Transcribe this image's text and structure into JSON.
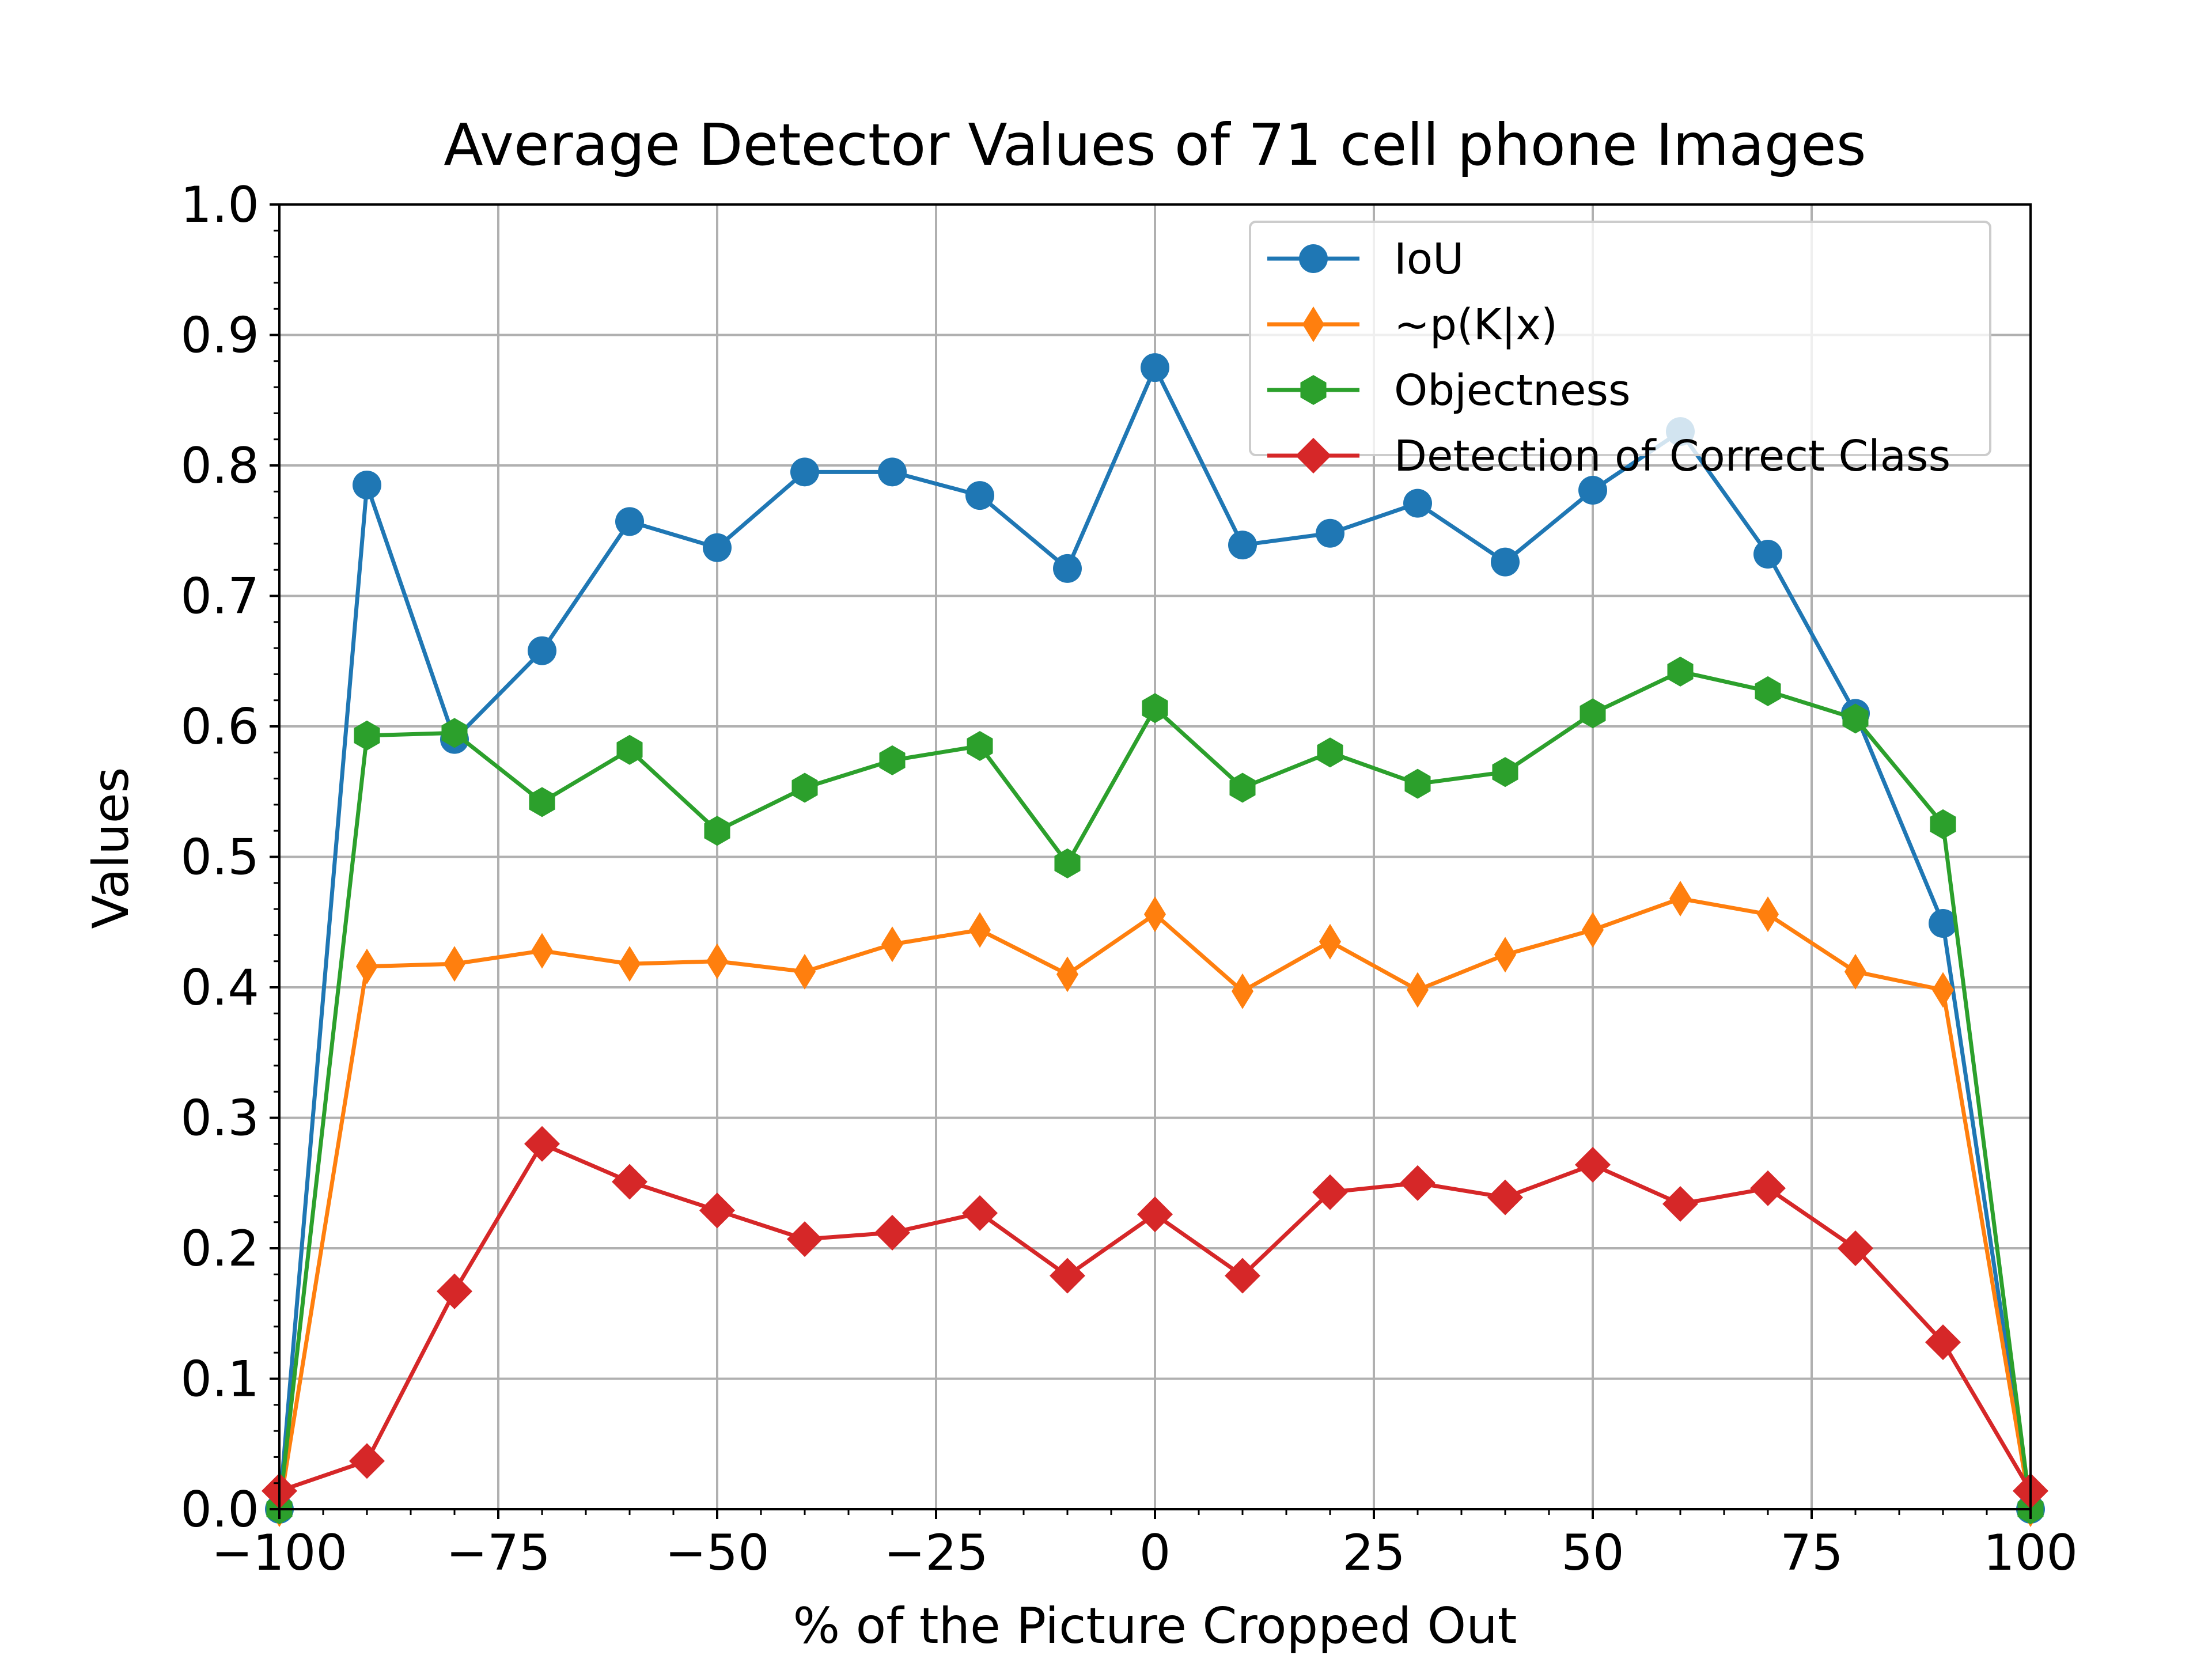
{
  "chart_data": {
    "type": "line",
    "title": "Average Detector Values of 71 cell phone Images",
    "xlabel": "% of the Picture Cropped Out",
    "ylabel": "Values",
    "xlim": [
      -100,
      100
    ],
    "ylim": [
      0.0,
      1.0
    ],
    "x_ticks": [
      -100,
      -75,
      -50,
      -25,
      0,
      25,
      50,
      75,
      100
    ],
    "x_tick_labels": [
      "−100",
      "−75",
      "−50",
      "−25",
      "0",
      "25",
      "50",
      "75",
      "100"
    ],
    "y_ticks": [
      0.0,
      0.1,
      0.2,
      0.3,
      0.4,
      0.5,
      0.6,
      0.7,
      0.8,
      0.9,
      1.0
    ],
    "y_tick_labels": [
      "0.0",
      "0.1",
      "0.2",
      "0.3",
      "0.4",
      "0.5",
      "0.6",
      "0.7",
      "0.8",
      "0.9",
      "1.0"
    ],
    "grid": true,
    "legend_position": "top-right",
    "x": [
      -100,
      -90,
      -80,
      -70,
      -60,
      -50,
      -40,
      -30,
      -20,
      -10,
      0,
      10,
      20,
      30,
      40,
      50,
      60,
      70,
      80,
      90,
      100
    ],
    "series": [
      {
        "name": "IoU",
        "color": "#1f77b4",
        "marker": "circle",
        "values": [
          0.0,
          0.785,
          0.59,
          0.658,
          0.757,
          0.737,
          0.795,
          0.795,
          0.777,
          0.721,
          0.875,
          0.739,
          0.748,
          0.771,
          0.726,
          0.781,
          0.826,
          0.732,
          0.61,
          0.449,
          0.0
        ]
      },
      {
        "name": "~p(K|x)",
        "color": "#ff7f0e",
        "marker": "thin_diamond",
        "values": [
          0.0,
          0.416,
          0.418,
          0.428,
          0.418,
          0.42,
          0.412,
          0.433,
          0.444,
          0.41,
          0.456,
          0.397,
          0.435,
          0.398,
          0.425,
          0.444,
          0.468,
          0.456,
          0.412,
          0.398,
          0.0
        ]
      },
      {
        "name": "Objectness",
        "color": "#2ca02c",
        "marker": "hexagon",
        "values": [
          0.0,
          0.593,
          0.595,
          0.542,
          0.582,
          0.52,
          0.553,
          0.574,
          0.585,
          0.495,
          0.614,
          0.553,
          0.58,
          0.556,
          0.565,
          0.61,
          0.642,
          0.627,
          0.606,
          0.525,
          0.0
        ]
      },
      {
        "name": "Detection of Correct Class",
        "color": "#d62728",
        "marker": "diamond",
        "values": [
          0.014,
          0.037,
          0.167,
          0.28,
          0.251,
          0.229,
          0.207,
          0.212,
          0.227,
          0.179,
          0.226,
          0.179,
          0.243,
          0.25,
          0.239,
          0.264,
          0.234,
          0.246,
          0.2,
          0.128,
          0.014
        ]
      }
    ]
  }
}
